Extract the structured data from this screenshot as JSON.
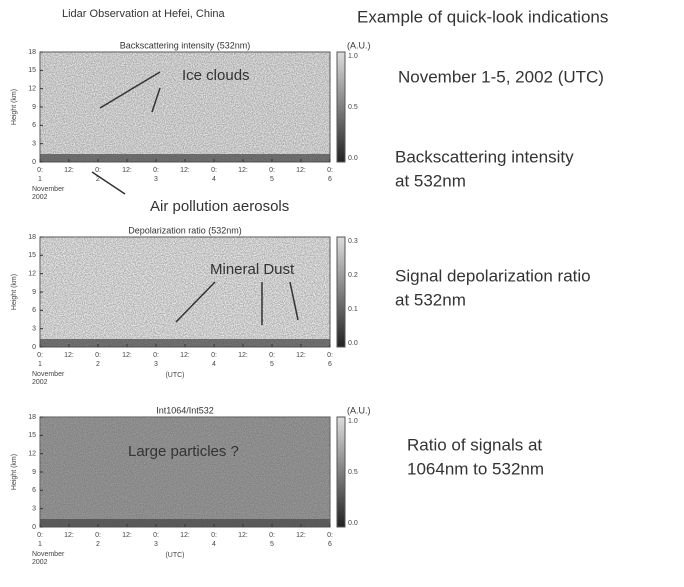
{
  "header": {
    "title_left": "Lidar Observation at Hefei, China",
    "title_right": "Example of quick-look indications"
  },
  "date": "November 1-5, 2002 (UTC)",
  "panels": [
    {
      "title": "Backscattering intensity (532nm)",
      "unit": "(A.U.)",
      "y_label": "Height (km)",
      "y_ticks": [
        "18",
        "15",
        "12",
        "9",
        "6",
        "3",
        "0"
      ],
      "colorbar_ticks": [
        "1.0",
        "0.5",
        "0.0"
      ],
      "x_ticks": [
        "0:",
        "12:",
        "0:",
        "12:",
        "0:",
        "12:",
        "0:",
        "12:",
        "0:",
        "12:",
        "0:"
      ],
      "x_days": [
        "1",
        "2",
        "3",
        "4",
        "5",
        "6"
      ],
      "x_month": "November",
      "x_year": "2002",
      "annotations": [
        "Ice clouds",
        "Air pollution aerosols"
      ],
      "caption": [
        "Backscattering intensity",
        "at 532nm"
      ]
    },
    {
      "title": "Depolarization ratio (532nm)",
      "y_label": "Height (km)",
      "y_ticks": [
        "18",
        "15",
        "12",
        "9",
        "6",
        "3",
        "0"
      ],
      "colorbar_ticks": [
        "0.3",
        "0.2",
        "0.1",
        "0.0"
      ],
      "x_ticks": [
        "0:",
        "12:",
        "0:",
        "12:",
        "0:",
        "12:",
        "0:",
        "12:",
        "0:",
        "12:",
        "0:"
      ],
      "x_days": [
        "1",
        "2",
        "3",
        "4",
        "5",
        "6"
      ],
      "x_month": "November",
      "x_year": "2002",
      "x_label": "(UTC)",
      "annotations": [
        "Mineral Dust"
      ],
      "caption": [
        "Signal depolarization ratio",
        "at 532nm"
      ]
    },
    {
      "title": "Int1064/Int532",
      "unit": "(A.U.)",
      "y_label": "Height (km)",
      "y_ticks": [
        "18",
        "15",
        "12",
        "9",
        "6",
        "3",
        "0"
      ],
      "colorbar_ticks": [
        "1.0",
        "0.5",
        "0.0"
      ],
      "x_ticks": [
        "0:",
        "12:",
        "0:",
        "12:",
        "0:",
        "12:",
        "0:",
        "12:",
        "0:",
        "12:",
        "0:"
      ],
      "x_days": [
        "1",
        "2",
        "3",
        "4",
        "5",
        "6"
      ],
      "x_month": "November",
      "x_year": "2002",
      "x_label": "(UTC)",
      "annotations": [
        "Large particles ?"
      ],
      "caption": [
        "Ratio of signals at",
        "1064nm to 532nm"
      ]
    }
  ]
}
